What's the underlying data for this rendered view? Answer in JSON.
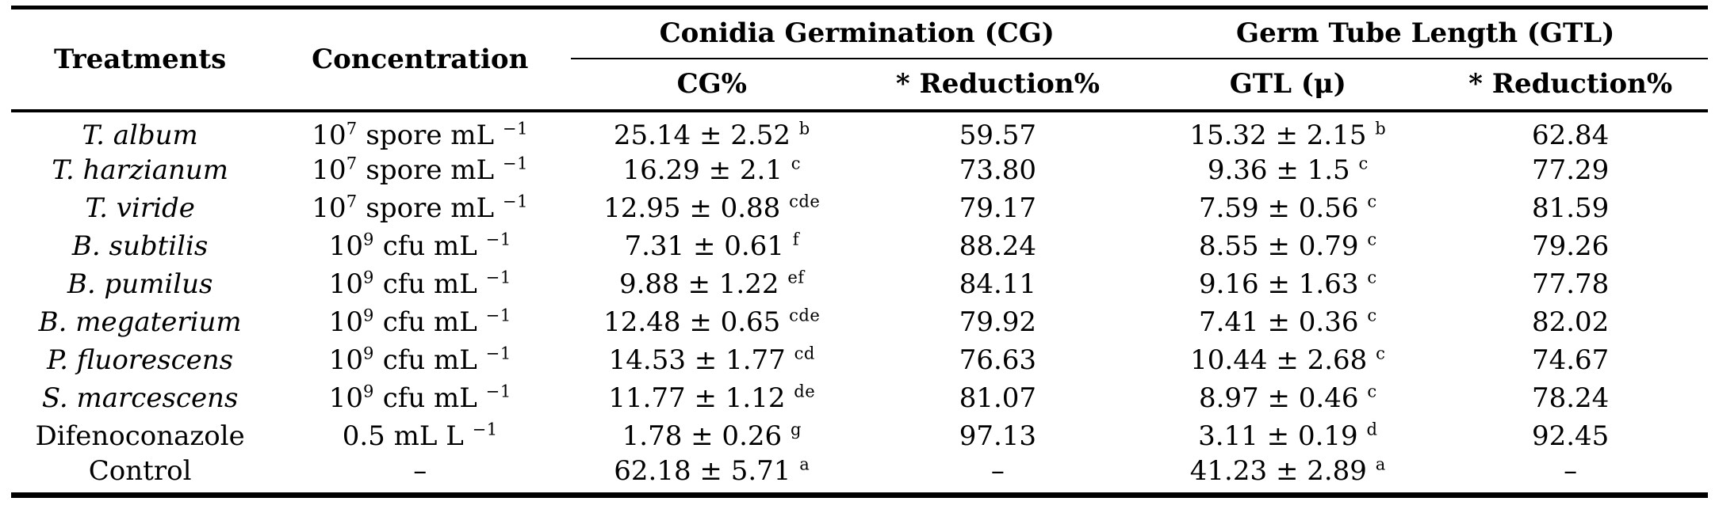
{
  "colors": {
    "text": "#000000",
    "background": "#ffffff",
    "rule": "#000000"
  },
  "table": {
    "col_headers": [
      "Treatments",
      "Concentration"
    ],
    "group_headers": [
      {
        "label": "Conidia Germination (CG)"
      },
      {
        "label": "Germ Tube Length (GTL)"
      }
    ],
    "sub_headers": [
      "CG%",
      "* Reduction%",
      "GTL (μ)",
      "* Reduction%"
    ],
    "rows": [
      {
        "treatment": "T. album",
        "italic": true,
        "concentration": [
          {
            "t": "10"
          },
          {
            "s": "7"
          },
          {
            "t": " spore mL "
          },
          {
            "s": "−1"
          }
        ],
        "cg": [
          {
            "t": "25.14 ± 2.52 "
          },
          {
            "s": "b"
          }
        ],
        "cg_reduction": "59.57",
        "gtl": [
          {
            "t": "15.32 ± 2.15 "
          },
          {
            "s": "b"
          }
        ],
        "gtl_reduction": "62.84"
      },
      {
        "treatment": "T. harzianum",
        "italic": true,
        "concentration": [
          {
            "t": "10"
          },
          {
            "s": "7"
          },
          {
            "t": " spore mL "
          },
          {
            "s": "−1"
          }
        ],
        "cg": [
          {
            "t": "16.29 ± 2.1 "
          },
          {
            "s": "c"
          }
        ],
        "cg_reduction": "73.80",
        "gtl": [
          {
            "t": "9.36 ± 1.5 "
          },
          {
            "s": "c"
          }
        ],
        "gtl_reduction": "77.29"
      },
      {
        "treatment": "T. viride",
        "italic": true,
        "concentration": [
          {
            "t": "10"
          },
          {
            "s": "7"
          },
          {
            "t": " spore mL "
          },
          {
            "s": "−1"
          }
        ],
        "cg": [
          {
            "t": "12.95 ± 0.88 "
          },
          {
            "s": "cde"
          }
        ],
        "cg_reduction": "79.17",
        "gtl": [
          {
            "t": "7.59 ± 0.56 "
          },
          {
            "s": "c"
          }
        ],
        "gtl_reduction": "81.59"
      },
      {
        "treatment": "B. subtilis",
        "italic": true,
        "concentration": [
          {
            "t": "10"
          },
          {
            "s": "9"
          },
          {
            "t": " cfu mL "
          },
          {
            "s": "−1"
          }
        ],
        "cg": [
          {
            "t": "7.31 ± 0.61 "
          },
          {
            "s": "f"
          }
        ],
        "cg_reduction": "88.24",
        "gtl": [
          {
            "t": "8.55 ± 0.79 "
          },
          {
            "s": "c"
          }
        ],
        "gtl_reduction": "79.26"
      },
      {
        "treatment": "B. pumilus",
        "italic": true,
        "concentration": [
          {
            "t": "10"
          },
          {
            "s": "9"
          },
          {
            "t": " cfu mL "
          },
          {
            "s": "−1"
          }
        ],
        "cg": [
          {
            "t": "9.88 ± 1.22 "
          },
          {
            "s": "ef"
          }
        ],
        "cg_reduction": "84.11",
        "gtl": [
          {
            "t": "9.16 ± 1.63 "
          },
          {
            "s": "c"
          }
        ],
        "gtl_reduction": "77.78"
      },
      {
        "treatment": "B. megaterium",
        "italic": true,
        "concentration": [
          {
            "t": "10"
          },
          {
            "s": "9"
          },
          {
            "t": " cfu mL "
          },
          {
            "s": "−1"
          }
        ],
        "cg": [
          {
            "t": "12.48 ± 0.65 "
          },
          {
            "s": "cde"
          }
        ],
        "cg_reduction": "79.92",
        "gtl": [
          {
            "t": "7.41 ± 0.36 "
          },
          {
            "s": "c"
          }
        ],
        "gtl_reduction": "82.02"
      },
      {
        "treatment": "P. fluorescens",
        "italic": true,
        "concentration": [
          {
            "t": "10"
          },
          {
            "s": "9"
          },
          {
            "t": " cfu mL "
          },
          {
            "s": "−1"
          }
        ],
        "cg": [
          {
            "t": "14.53 ± 1.77 "
          },
          {
            "s": "cd"
          }
        ],
        "cg_reduction": "76.63",
        "gtl": [
          {
            "t": "10.44 ± 2.68 "
          },
          {
            "s": "c"
          }
        ],
        "gtl_reduction": "74.67"
      },
      {
        "treatment": "S. marcescens",
        "italic": true,
        "concentration": [
          {
            "t": "10"
          },
          {
            "s": "9"
          },
          {
            "t": " cfu mL "
          },
          {
            "s": "−1"
          }
        ],
        "cg": [
          {
            "t": "11.77 ± 1.12 "
          },
          {
            "s": "de"
          }
        ],
        "cg_reduction": "81.07",
        "gtl": [
          {
            "t": "8.97 ± 0.46 "
          },
          {
            "s": "c"
          }
        ],
        "gtl_reduction": "78.24"
      },
      {
        "treatment": "Difenoconazole",
        "italic": false,
        "concentration": [
          {
            "t": "0.5 mL L "
          },
          {
            "s": "−1"
          }
        ],
        "cg": [
          {
            "t": "1.78 ± 0.26 "
          },
          {
            "s": "g"
          }
        ],
        "cg_reduction": "97.13",
        "gtl": [
          {
            "t": "3.11 ± 0.19 "
          },
          {
            "s": "d"
          }
        ],
        "gtl_reduction": "92.45"
      },
      {
        "treatment": "Control",
        "italic": false,
        "concentration": [
          {
            "t": "–"
          }
        ],
        "cg": [
          {
            "t": "62.18 ± 5.71 "
          },
          {
            "s": "a"
          }
        ],
        "cg_reduction": "–",
        "gtl": [
          {
            "t": "41.23 ± 2.89 "
          },
          {
            "s": "a"
          }
        ],
        "gtl_reduction": "–"
      }
    ]
  }
}
